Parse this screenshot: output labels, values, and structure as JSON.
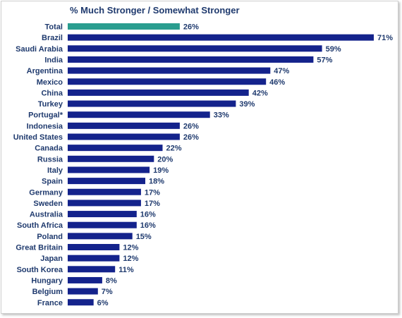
{
  "chart_data": {
    "type": "bar",
    "orientation": "horizontal",
    "title": "% Much Stronger / Somewhat Stronger",
    "categories": [
      "Total",
      "Brazil",
      "Saudi Arabia",
      "India",
      "Argentina",
      "Mexico",
      "China",
      "Turkey",
      "Portugal*",
      "Indonesia",
      "United States",
      "Canada",
      "Russia",
      "Italy",
      "Spain",
      "Germany",
      "Sweden",
      "Australia",
      "South Africa",
      "Poland",
      "Great Britain",
      "Japan",
      "South Korea",
      "Hungary",
      "Belgium",
      "France"
    ],
    "values": [
      26,
      71,
      59,
      57,
      47,
      46,
      42,
      39,
      33,
      26,
      26,
      22,
      20,
      19,
      18,
      17,
      17,
      16,
      16,
      15,
      12,
      12,
      11,
      8,
      7,
      6
    ],
    "value_suffix": "%",
    "xlim": [
      0,
      71
    ],
    "grid": false,
    "legend": "none",
    "colors": {
      "highlight": "#2a9d8f",
      "bar": "#14238c",
      "text": "#1f3a6e"
    },
    "highlight_categories": [
      "Total"
    ]
  }
}
